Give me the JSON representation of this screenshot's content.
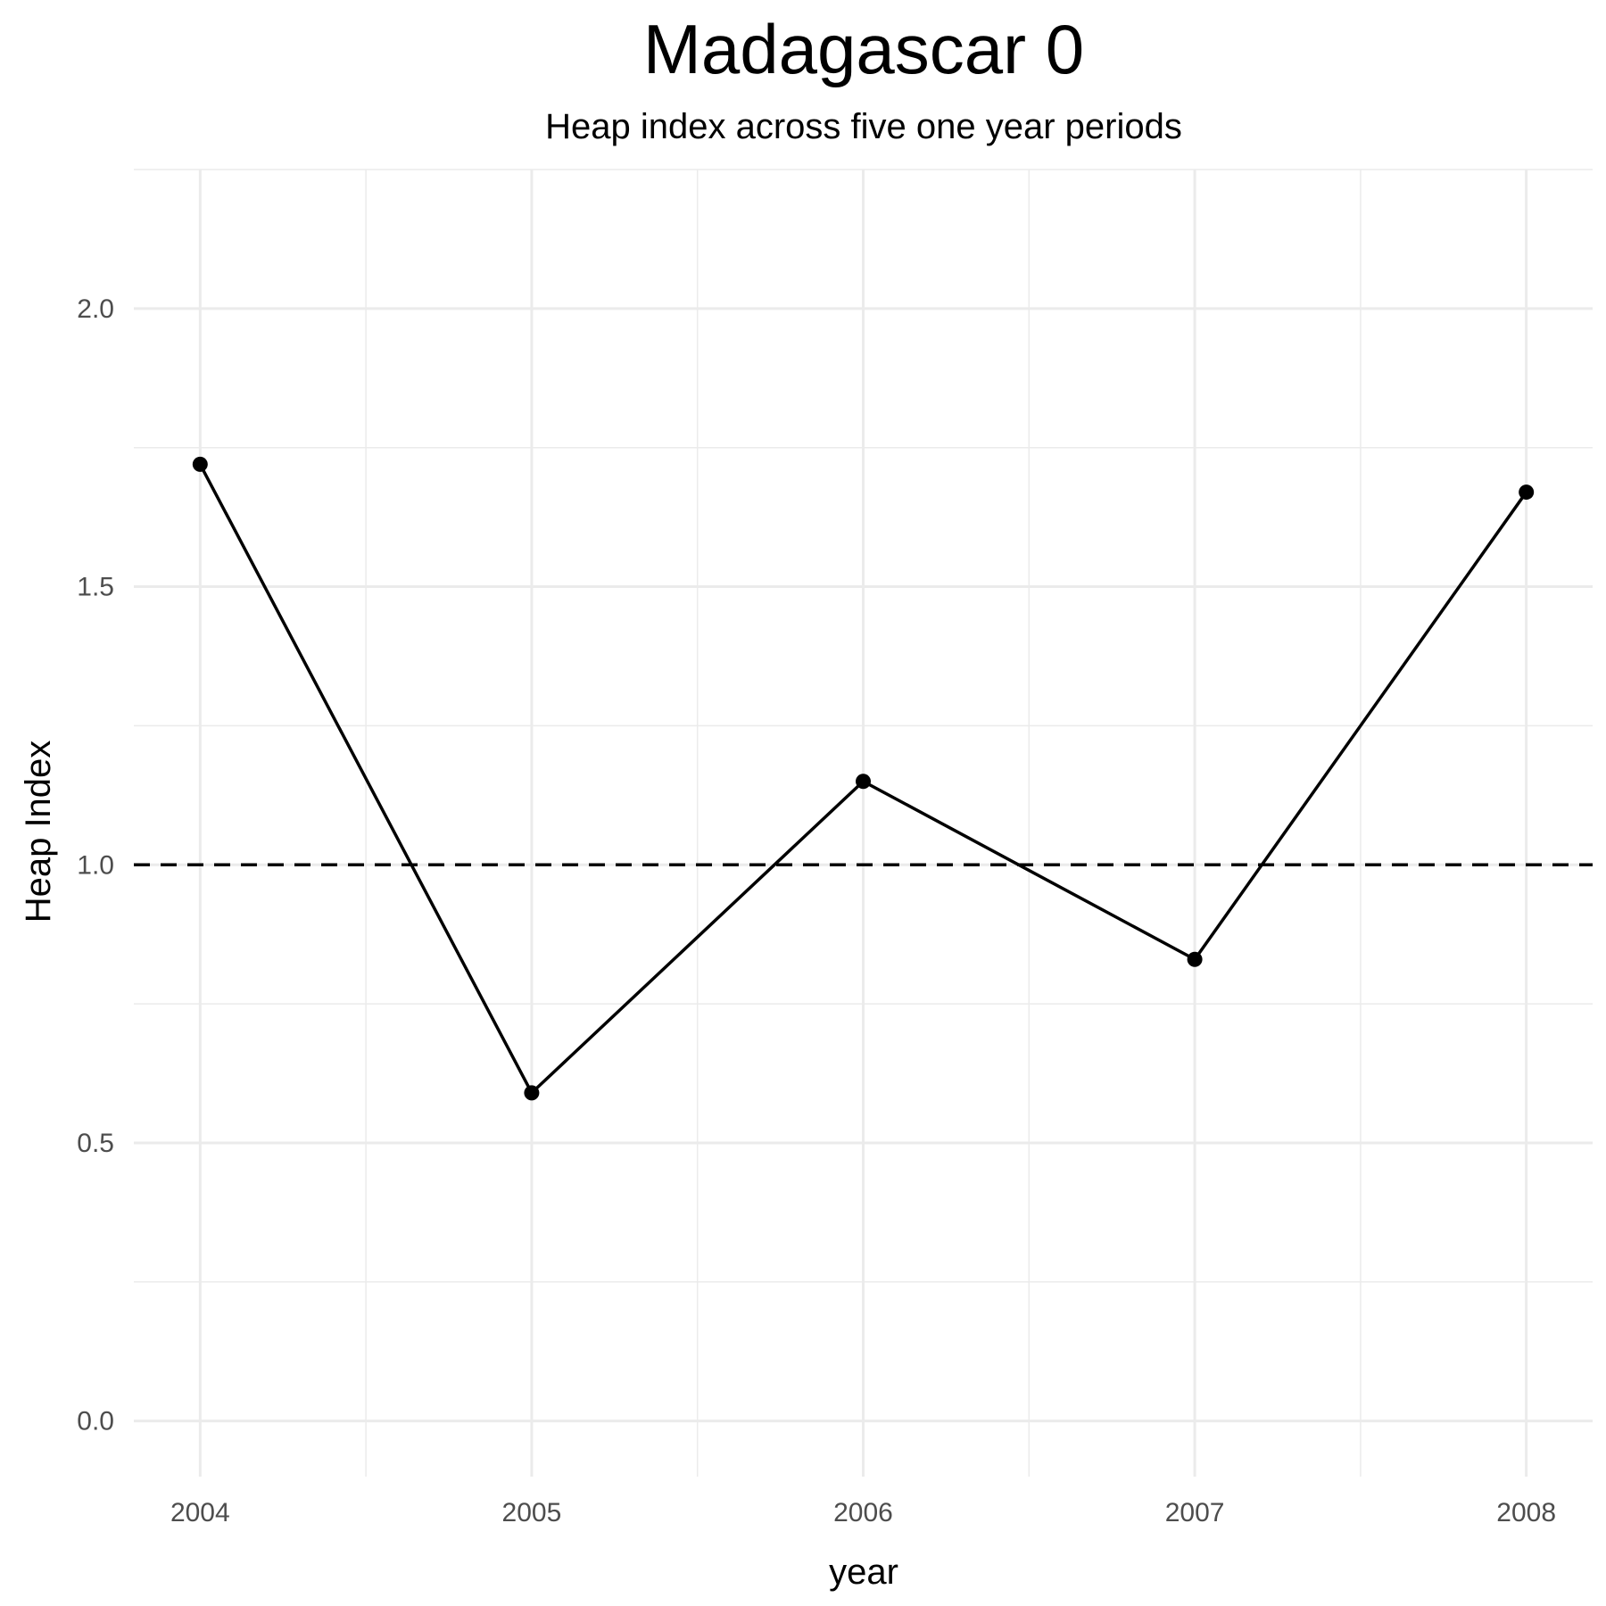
{
  "chart_data": {
    "type": "line",
    "title": "Madagascar 0",
    "subtitle": "Heap index across five one year periods",
    "xlabel": "year",
    "ylabel": "Heap Index",
    "x": [
      2004,
      2005,
      2006,
      2007,
      2008
    ],
    "series": [
      {
        "values": [
          1.72,
          0.59,
          1.15,
          0.83,
          1.67
        ],
        "color": "#000000"
      }
    ],
    "reference_line": {
      "y": 1.0,
      "style": "dashed",
      "color": "#000000"
    },
    "xlim": [
      2003.8,
      2008.2
    ],
    "ylim": [
      -0.1,
      2.25
    ],
    "x_ticks": [
      "2004",
      "2005",
      "2006",
      "2007",
      "2008"
    ],
    "y_ticks": [
      "0.0",
      "0.5",
      "1.0",
      "1.5",
      "2.0"
    ],
    "grid": true,
    "legend": "none"
  }
}
